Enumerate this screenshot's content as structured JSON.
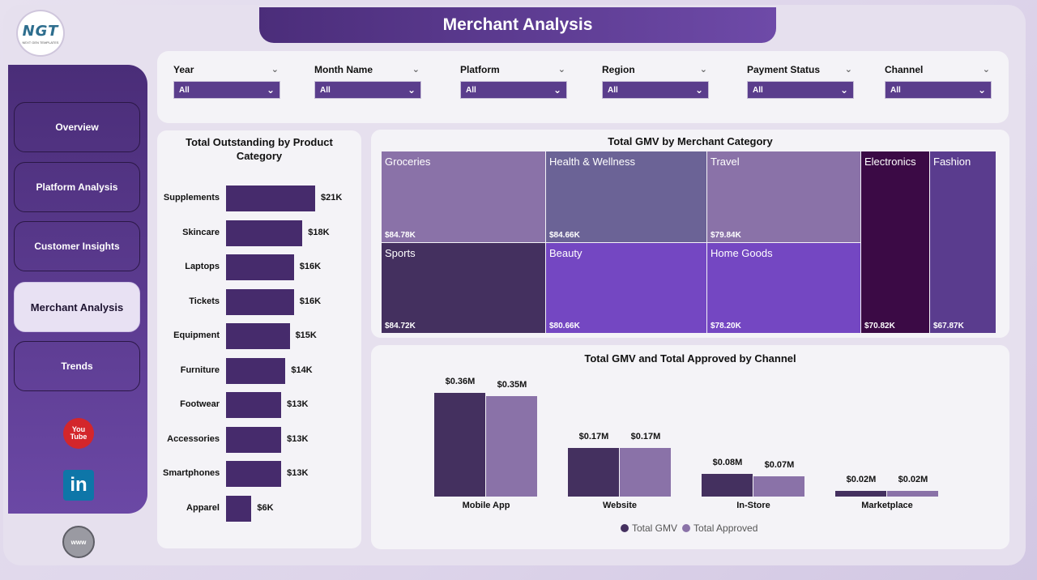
{
  "brand": {
    "logo_text": "NGT",
    "logo_sub": "NEXT GEN TEMPLATES"
  },
  "page": {
    "title": "Merchant Analysis"
  },
  "nav": {
    "items": [
      {
        "label": "Overview",
        "active": false
      },
      {
        "label": "Platform Analysis",
        "active": false
      },
      {
        "label": "Customer Insights",
        "active": false
      },
      {
        "label": "Merchant Analysis",
        "active": true
      },
      {
        "label": "Trends",
        "active": false
      }
    ]
  },
  "social": {
    "youtube_a": "You",
    "youtube_b": "Tube",
    "linkedin": "in",
    "web": "www"
  },
  "filters": [
    {
      "label": "Year",
      "value": "All"
    },
    {
      "label": "Month Name",
      "value": "All"
    },
    {
      "label": "Platform",
      "value": "All"
    },
    {
      "label": "Region",
      "value": "All"
    },
    {
      "label": "Payment Status",
      "value": "All"
    },
    {
      "label": "Channel",
      "value": "All"
    }
  ],
  "chart_data": [
    {
      "type": "bar",
      "orientation": "horizontal",
      "title": "Total Outstanding by Product Category",
      "categories": [
        "Supplements",
        "Skincare",
        "Laptops",
        "Tickets",
        "Equipment",
        "Furniture",
        "Footwear",
        "Accessories",
        "Smartphones",
        "Apparel"
      ],
      "values": [
        21,
        18,
        16,
        16,
        15,
        14,
        13,
        13,
        13,
        6
      ],
      "labels": [
        "$21K",
        "$18K",
        "$16K",
        "$16K",
        "$15K",
        "$14K",
        "$13K",
        "$13K",
        "$13K",
        "$6K"
      ],
      "unit": "K"
    },
    {
      "type": "treemap",
      "title": "Total GMV by Merchant Category",
      "items": [
        {
          "name": "Groceries",
          "value": 84.78,
          "label": "$84.78K",
          "color": "#8a72a8"
        },
        {
          "name": "Health & Wellness",
          "value": 84.66,
          "label": "$84.66K",
          "color": "#6b6396"
        },
        {
          "name": "Travel",
          "value": 79.84,
          "label": "$79.84K",
          "color": "#8a72a8"
        },
        {
          "name": "Electronics",
          "value": 70.82,
          "label": "$70.82K",
          "color": "#3b0a45"
        },
        {
          "name": "Fashion",
          "value": 67.87,
          "label": "$67.87K",
          "color": "#5a3c8e"
        },
        {
          "name": "Sports",
          "value": 84.72,
          "label": "$84.72K",
          "color": "#44305f"
        },
        {
          "name": "Beauty",
          "value": 80.66,
          "label": "$80.66K",
          "color": "#7447c2"
        },
        {
          "name": "Home Goods",
          "value": 78.2,
          "label": "$78.20K",
          "color": "#7447c2"
        }
      ]
    },
    {
      "type": "bar",
      "title": "Total GMV and Total Approved by Channel",
      "categories": [
        "Mobile App",
        "Website",
        "In-Store",
        "Marketplace"
      ],
      "series": [
        {
          "name": "Total GMV",
          "values": [
            0.36,
            0.17,
            0.08,
            0.02
          ],
          "labels": [
            "$0.36M",
            "$0.17M",
            "$0.08M",
            "$0.02M"
          ],
          "color": "#44305f"
        },
        {
          "name": "Total Approved",
          "values": [
            0.35,
            0.17,
            0.07,
            0.02
          ],
          "labels": [
            "$0.35M",
            "$0.17M",
            "$0.07M",
            "$0.02M"
          ],
          "color": "#8a72a8"
        }
      ],
      "unit": "M"
    }
  ]
}
